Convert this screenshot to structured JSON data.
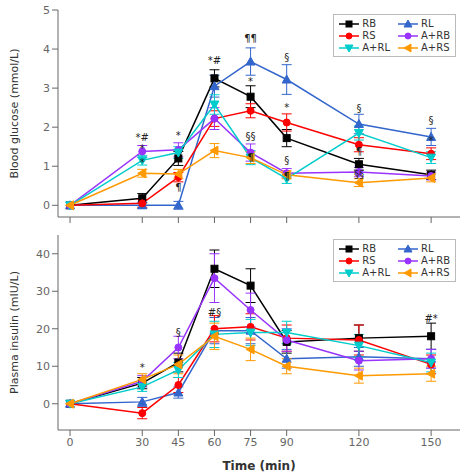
{
  "chart_data": [
    {
      "type": "line",
      "y_label": "Blood glucose (mmol/L)",
      "x": [
        0,
        30,
        45,
        60,
        75,
        90,
        120,
        150
      ],
      "xlim": [
        -5,
        162
      ],
      "xticks": [
        0,
        30,
        45,
        60,
        75,
        90,
        120,
        150
      ],
      "tick_labels": "y",
      "ylim": [
        -0.3,
        5.0
      ],
      "yticks": [
        0,
        1,
        2,
        3,
        4,
        5
      ],
      "grid": false,
      "legend": "upper right",
      "series": [
        {
          "name": "RB",
          "color": "#000000",
          "marker": "square",
          "values": [
            0.0,
            0.18,
            1.2,
            3.25,
            2.78,
            1.72,
            1.05,
            0.78
          ],
          "errors": [
            0.0,
            0.12,
            0.18,
            0.22,
            0.28,
            0.22,
            0.15,
            0.12
          ]
        },
        {
          "name": "RL",
          "color": "#3366CC",
          "marker": "triangle-up",
          "values": [
            0.0,
            0.0,
            0.0,
            3.05,
            3.68,
            3.22,
            2.08,
            1.75
          ],
          "errors": [
            0.0,
            0.08,
            0.1,
            0.28,
            0.35,
            0.38,
            0.25,
            0.22
          ]
        },
        {
          "name": "RS",
          "color": "#FF0000",
          "marker": "circle",
          "values": [
            0.0,
            0.05,
            0.72,
            2.22,
            2.42,
            2.12,
            1.55,
            1.32
          ],
          "errors": [
            0.0,
            0.1,
            0.12,
            0.2,
            0.18,
            0.22,
            0.18,
            0.15
          ]
        },
        {
          "name": "A+RB",
          "color": "#9933FF",
          "marker": "circle",
          "values": [
            0.0,
            1.38,
            1.42,
            2.22,
            1.35,
            0.82,
            0.85,
            0.75
          ],
          "errors": [
            0.0,
            0.15,
            0.18,
            0.28,
            0.22,
            0.12,
            0.12,
            0.1
          ]
        },
        {
          "name": "A+RL",
          "color": "#00CCCC",
          "marker": "triangle-down",
          "values": [
            0.0,
            1.15,
            1.35,
            2.58,
            1.22,
            0.68,
            1.85,
            1.22
          ],
          "errors": [
            0.0,
            0.12,
            0.15,
            0.25,
            0.18,
            0.12,
            0.18,
            0.15
          ]
        },
        {
          "name": "A+RS",
          "color": "#FF9900",
          "marker": "triangle-left",
          "values": [
            0.0,
            0.82,
            0.8,
            1.4,
            1.22,
            0.78,
            0.58,
            0.7
          ],
          "errors": [
            0.0,
            0.1,
            0.12,
            0.18,
            0.15,
            0.1,
            0.1,
            0.1
          ]
        }
      ],
      "annotations": [
        {
          "x": 30,
          "y": 1.58,
          "text": "*#"
        },
        {
          "x": 30,
          "y": 1.28,
          "text": "*"
        },
        {
          "x": 30,
          "y": 0.92,
          "text": "*"
        },
        {
          "x": 45,
          "y": 1.62,
          "text": "*"
        },
        {
          "x": 45,
          "y": 0.28,
          "text": "¶"
        },
        {
          "x": 60,
          "y": 3.55,
          "text": "*#"
        },
        {
          "x": 75,
          "y": 4.1,
          "text": "¶¶"
        },
        {
          "x": 75,
          "y": 3.0,
          "text": "*"
        },
        {
          "x": 75,
          "y": 1.6,
          "text": "§§"
        },
        {
          "x": 75,
          "y": 1.05,
          "text": "¶"
        },
        {
          "x": 90,
          "y": 3.62,
          "text": "§"
        },
        {
          "x": 90,
          "y": 0.58,
          "text": "¶"
        },
        {
          "x": 90,
          "y": 0.98,
          "text": "§"
        },
        {
          "x": 90,
          "y": 2.35,
          "text": "*"
        },
        {
          "x": 120,
          "y": 1.2,
          "text": "¶"
        },
        {
          "x": 120,
          "y": 2.3,
          "text": "§"
        },
        {
          "x": 120,
          "y": 0.62,
          "text": "§§"
        },
        {
          "x": 150,
          "y": 2.0,
          "text": "§"
        },
        {
          "x": 150,
          "y": 1.5,
          "text": "*"
        }
      ]
    },
    {
      "type": "line",
      "x_label": "Time (min)",
      "y_label": "Plasma insulin (mIU/L)",
      "x": [
        0,
        30,
        45,
        60,
        75,
        90,
        120,
        150
      ],
      "xlim": [
        -5,
        162
      ],
      "xticks": [
        0,
        30,
        45,
        60,
        75,
        90,
        120,
        150
      ],
      "ylim": [
        -7,
        45
      ],
      "yticks": [
        0,
        10,
        20,
        30,
        40
      ],
      "grid": false,
      "legend": "upper right",
      "series": [
        {
          "name": "RB",
          "color": "#000000",
          "marker": "square",
          "values": [
            0.0,
            5.5,
            11.0,
            36.0,
            31.5,
            16.5,
            17.5,
            18.0
          ],
          "errors": [
            0.0,
            1.5,
            2.5,
            5.0,
            4.5,
            3.0,
            3.5,
            3.5
          ]
        },
        {
          "name": "RL",
          "color": "#3366CC",
          "marker": "triangle-up",
          "values": [
            0.0,
            0.5,
            3.0,
            19.5,
            19.5,
            12.0,
            12.5,
            12.0
          ],
          "errors": [
            0.0,
            1.2,
            1.5,
            3.5,
            3.5,
            2.5,
            2.5,
            2.5
          ]
        },
        {
          "name": "RS",
          "color": "#FF0000",
          "marker": "circle",
          "values": [
            0.0,
            -2.5,
            5.0,
            20.0,
            20.5,
            17.5,
            17.0,
            10.5
          ],
          "errors": [
            0.0,
            1.5,
            2.0,
            3.5,
            3.5,
            3.5,
            4.0,
            2.5
          ]
        },
        {
          "name": "A+RB",
          "color": "#9933FF",
          "marker": "circle",
          "values": [
            0.0,
            6.0,
            15.0,
            33.5,
            25.0,
            17.0,
            11.5,
            12.0
          ],
          "errors": [
            0.0,
            1.5,
            3.0,
            6.5,
            4.5,
            3.0,
            2.5,
            2.5
          ]
        },
        {
          "name": "A+RL",
          "color": "#00CCCC",
          "marker": "triangle-down",
          "values": [
            0.0,
            4.5,
            9.0,
            18.5,
            19.0,
            19.0,
            15.5,
            11.0
          ],
          "errors": [
            0.0,
            1.2,
            2.0,
            3.5,
            3.5,
            3.0,
            3.0,
            2.5
          ]
        },
        {
          "name": "A+RS",
          "color": "#FF9900",
          "marker": "triangle-left",
          "values": [
            0.0,
            6.5,
            10.5,
            18.0,
            14.5,
            10.0,
            7.5,
            8.0
          ],
          "errors": [
            0.0,
            1.5,
            2.5,
            3.5,
            3.0,
            2.0,
            2.0,
            2.0
          ]
        }
      ],
      "annotations": [
        {
          "x": 30,
          "y": 8.0,
          "text": "*"
        },
        {
          "x": 45,
          "y": 17.2,
          "text": "§"
        },
        {
          "x": 60,
          "y": 22.5,
          "text": "#§"
        },
        {
          "x": 150,
          "y": 21.0,
          "text": "#*"
        }
      ]
    }
  ]
}
